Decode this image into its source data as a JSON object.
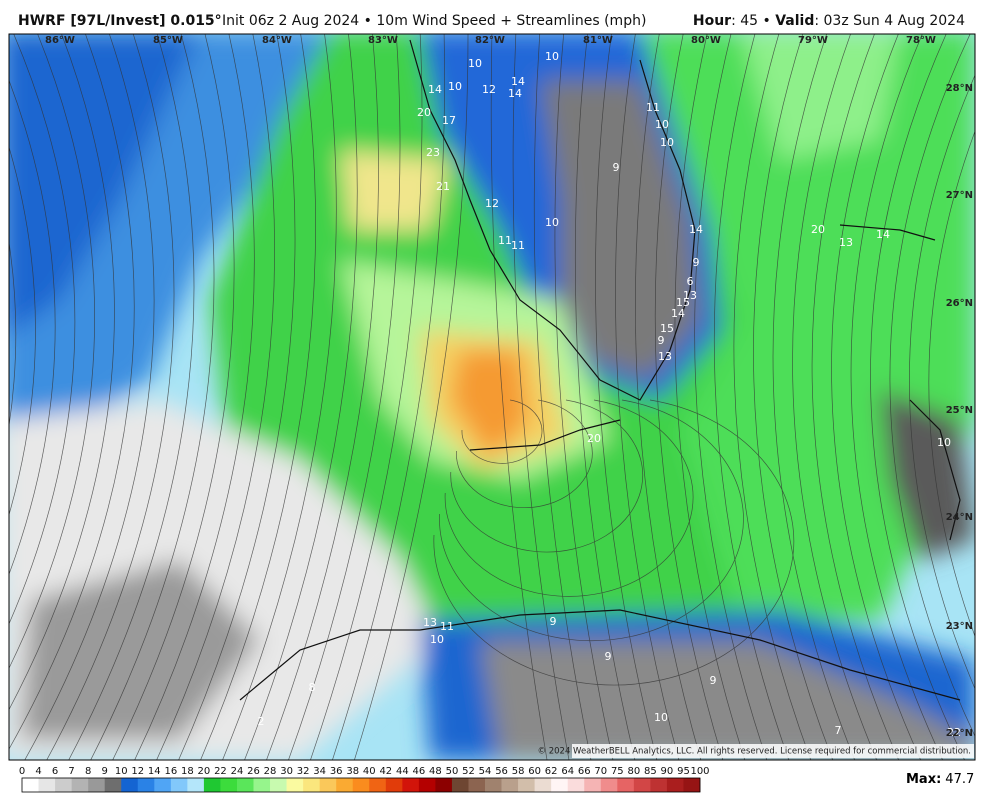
{
  "header": {
    "model": "HWRF [97L/Invest] 0.015°",
    "description": "Init 06z 2 Aug 2024 • 10m Wind Speed + Streamlines (mph)",
    "hour_label": "Hour",
    "hour_value": ": 45 • ",
    "valid_label": "Valid",
    "valid_value": ": 03z Sun 4 Aug 2024"
  },
  "longitudes": [
    "86°W",
    "85°W",
    "84°W",
    "83°W",
    "82°W",
    "81°W",
    "80°W",
    "79°W",
    "78°W"
  ],
  "latitudes": [
    "28°N",
    "27°N",
    "26°N",
    "25°N",
    "24°N",
    "23°N",
    "22°N"
  ],
  "map_labels": [
    "10",
    "10",
    "14",
    "14",
    "10",
    "12",
    "14",
    "20",
    "17",
    "23",
    "21",
    "12",
    "10",
    "11",
    "11",
    "11",
    "10",
    "10",
    "9",
    "14",
    "9",
    "6",
    "13",
    "15",
    "14",
    "15",
    "9",
    "13",
    "13",
    "14",
    "20",
    "10",
    "20",
    "13",
    "11",
    "10",
    "9",
    "9",
    "9",
    "8",
    "10",
    "7",
    "2",
    "22"
  ],
  "colorbar": {
    "levels": [
      0,
      4,
      6,
      7,
      8,
      9,
      10,
      12,
      14,
      16,
      18,
      20,
      22,
      24,
      26,
      28,
      30,
      32,
      34,
      36,
      38,
      40,
      42,
      44,
      46,
      48,
      50,
      52,
      54,
      56,
      58,
      60,
      62,
      64,
      66,
      70,
      75,
      80,
      85,
      90,
      95,
      100
    ],
    "colors": [
      "#ffffff",
      "#e6e6e6",
      "#cccccc",
      "#b3b3b3",
      "#999999",
      "#6e6e6e",
      "#1464d2",
      "#2a82e6",
      "#50a5f5",
      "#82c8fa",
      "#b4e6fa",
      "#1fc832",
      "#3cdc3c",
      "#5ae65a",
      "#96f58c",
      "#c8faaf",
      "#fafaa0",
      "#fae67d",
      "#fac85a",
      "#faaa32",
      "#fa8c1e",
      "#f06414",
      "#e13c0a",
      "#d2140a",
      "#b40000",
      "#8c0000",
      "#6e4632",
      "#8c6450",
      "#a0826e",
      "#b9a08c",
      "#d2beaa",
      "#ebdcd2",
      "#fff5f5",
      "#fadcdc",
      "#f5b4b4",
      "#f08c8c",
      "#e66464",
      "#d24646",
      "#be3232",
      "#aa1e1e",
      "#961414"
    ]
  },
  "max": {
    "label": "Max:",
    "value": 47.7
  },
  "copyright": "© 2024 WeatherBELL Analytics, LLC. All rights reserved. License required for commercial distribution."
}
